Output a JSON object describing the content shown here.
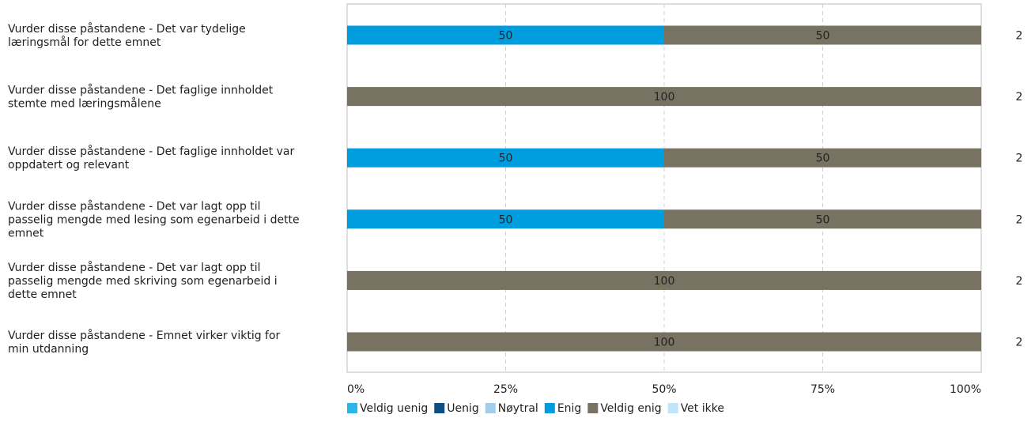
{
  "chart_data": {
    "type": "bar",
    "orientation": "horizontal",
    "stacked": true,
    "categories": [
      [
        "Vurder disse påstandene  - Det var tydelige",
        "læringsmål for dette emnet"
      ],
      [
        "Vurder disse påstandene  - Det faglige innholdet",
        "stemte med læringsmålene"
      ],
      [
        "Vurder disse påstandene  - Det faglige innholdet var",
        "oppdatert og relevant"
      ],
      [
        "Vurder disse påstandene  - Det var lagt opp til",
        "passelig mengde med lesing som egenarbeid i dette",
        "emnet"
      ],
      [
        "Vurder disse påstandene  - Det var lagt opp til",
        "passelig mengde med skriving som egenarbeid i",
        "dette emnet"
      ],
      [
        "Vurder disse påstandene  - Emnet virker viktig for",
        "min utdanning"
      ]
    ],
    "series": [
      {
        "name": "Veldig uenig",
        "color": "#29B6E8",
        "values": [
          0,
          0,
          0,
          0,
          0,
          0
        ]
      },
      {
        "name": "Uenig",
        "color": "#0B4F87",
        "values": [
          0,
          0,
          0,
          0,
          0,
          0
        ]
      },
      {
        "name": "Nøytral",
        "color": "#A3CDEB",
        "values": [
          0,
          0,
          0,
          0,
          0,
          0
        ]
      },
      {
        "name": "Enig",
        "color": "#009DDE",
        "values": [
          50,
          0,
          50,
          50,
          0,
          0
        ]
      },
      {
        "name": "Veldig enig",
        "color": "#777261",
        "values": [
          50,
          100,
          50,
          50,
          100,
          100
        ]
      },
      {
        "name": "Vet ikke",
        "color": "#BFE6F8",
        "values": [
          0,
          0,
          0,
          0,
          0,
          0
        ]
      }
    ],
    "n_values": [
      "2",
      "2",
      "2",
      "2",
      "2",
      "2"
    ],
    "xlim": [
      0,
      100
    ],
    "x_ticks": [
      "0%",
      "25%",
      "50%",
      "75%",
      "100%"
    ],
    "grid": "vertical dashed",
    "legend_position": "bottom"
  }
}
